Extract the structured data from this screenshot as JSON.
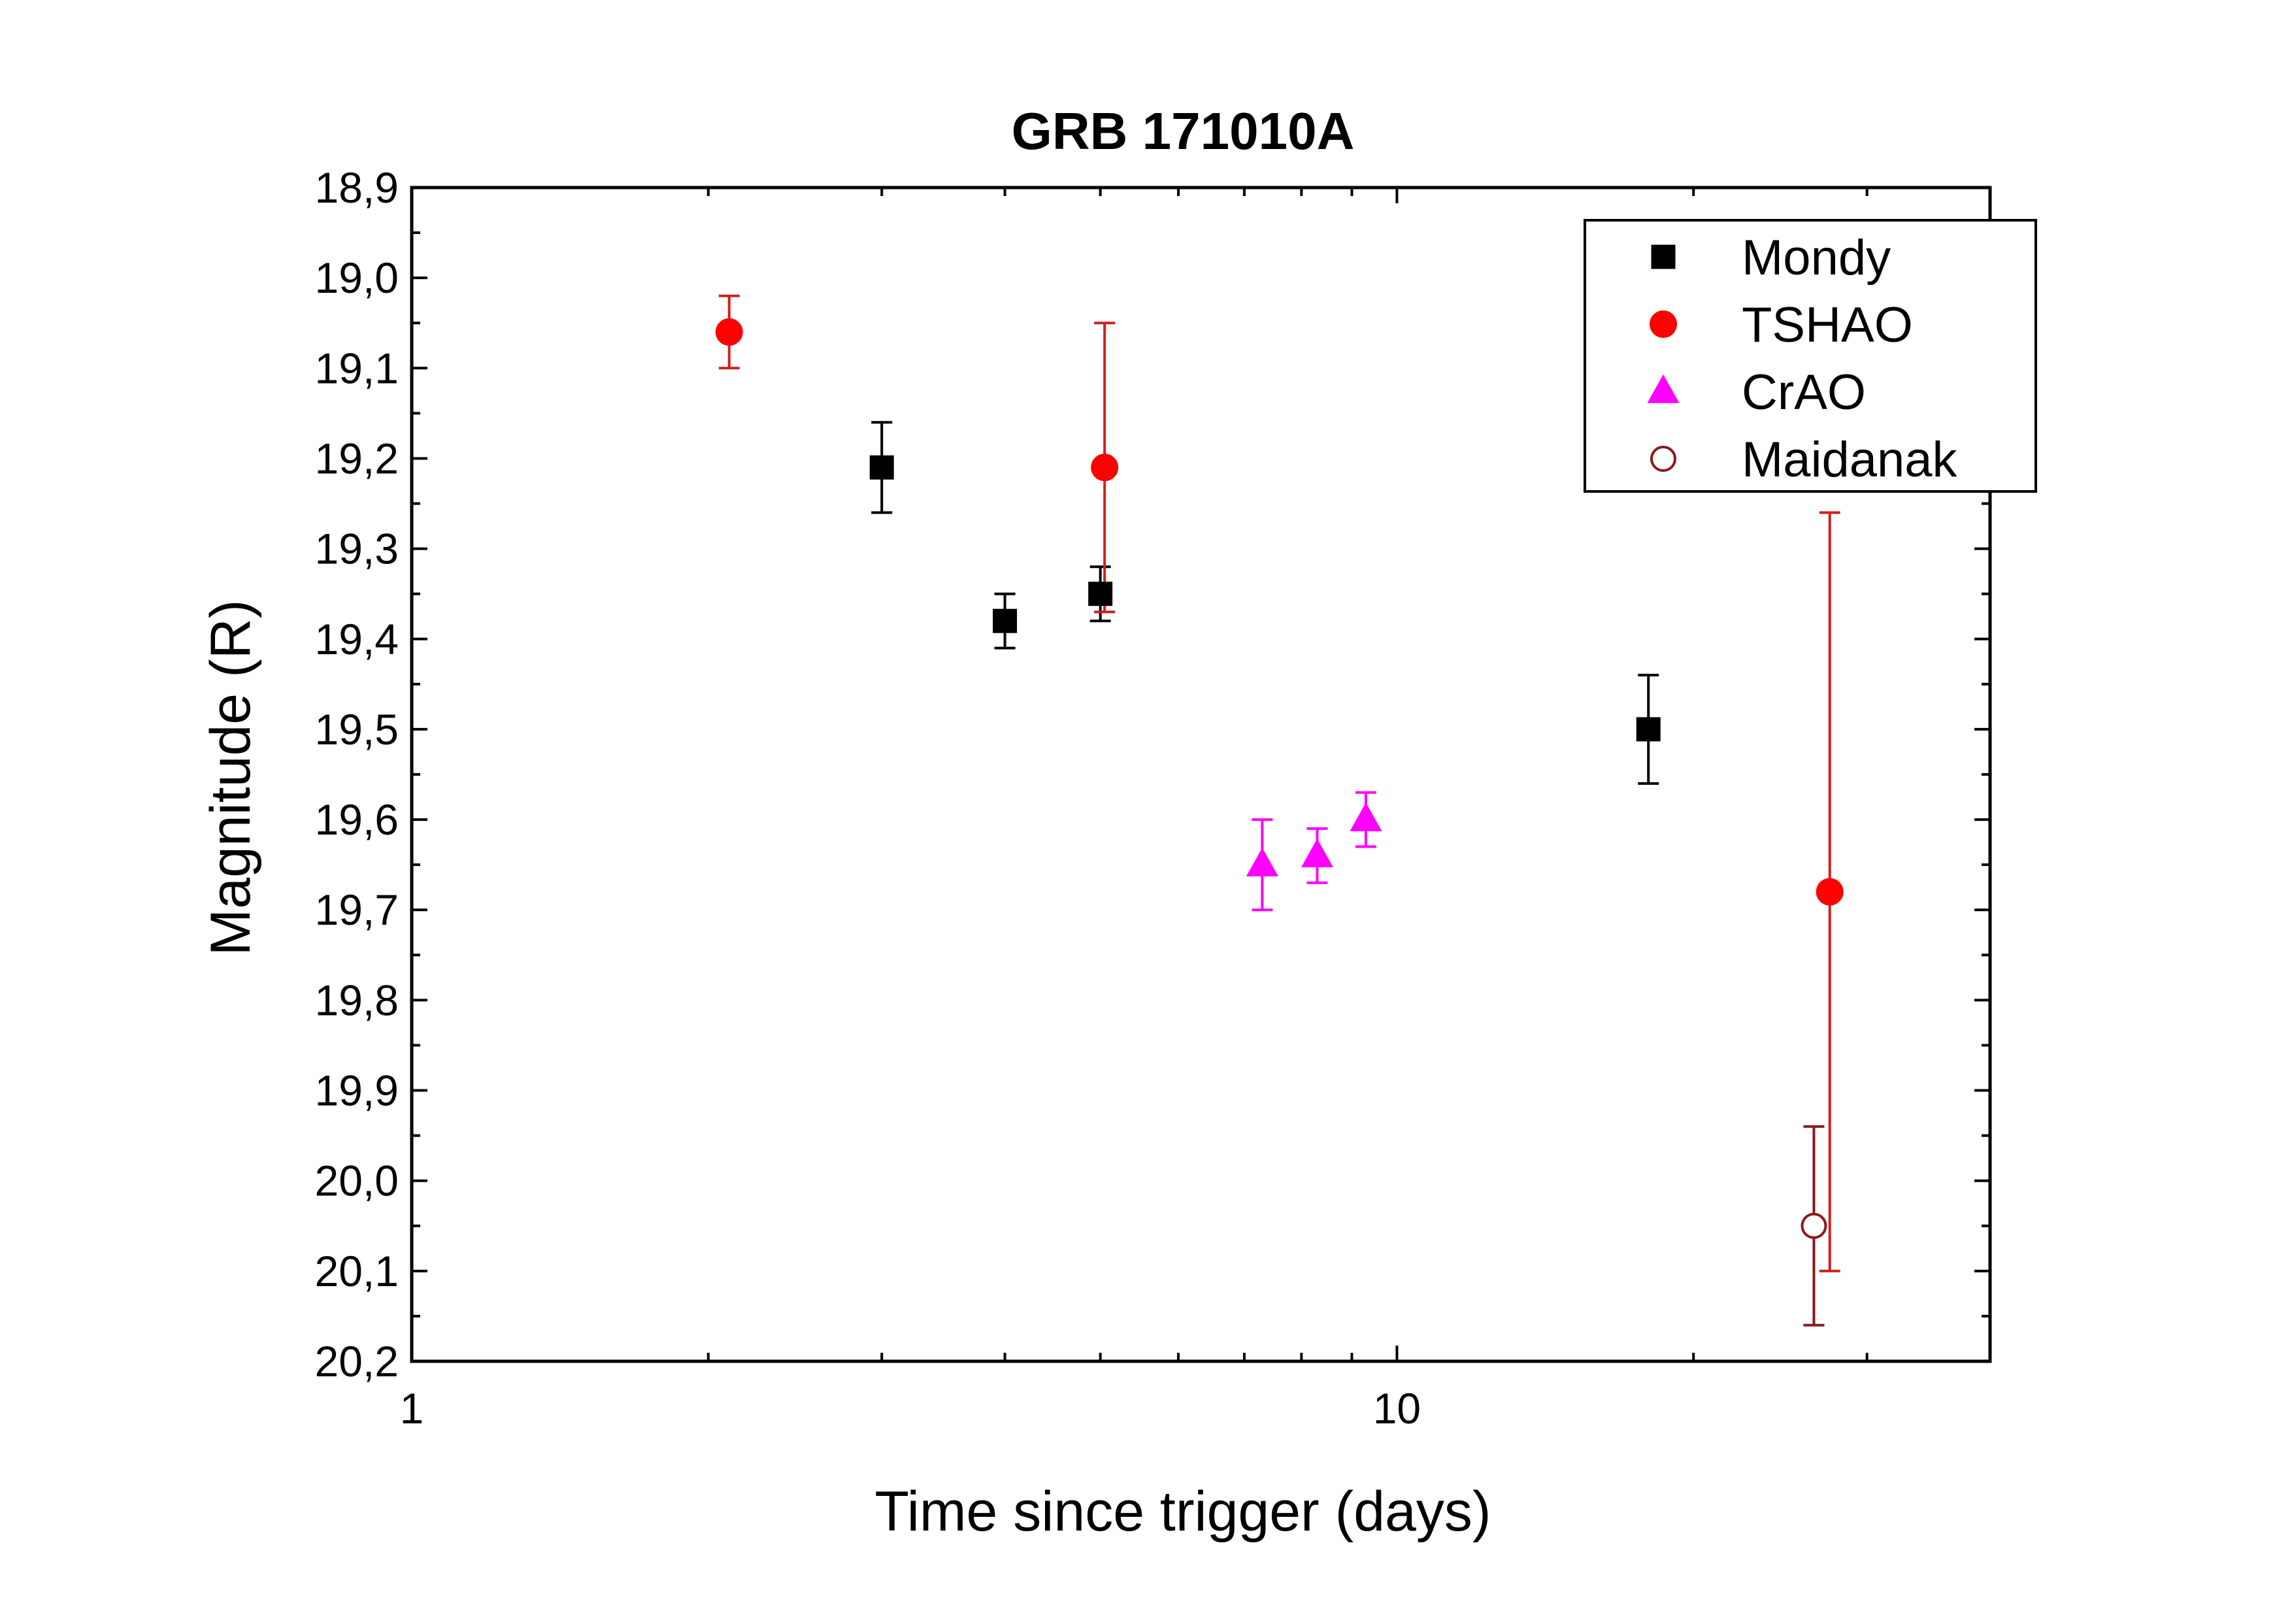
{
  "chart_data": {
    "type": "scatter",
    "title": "GRB 171010A",
    "xlabel": "Time since trigger (days)",
    "ylabel": "Magnitude (R)",
    "xscale": "log",
    "xlim": [
      1,
      40
    ],
    "ylim": [
      18.9,
      20.2
    ],
    "y_inverted": true,
    "grid": false,
    "legend_position": "top-right",
    "x_tick_labels": [
      {
        "value": 1,
        "label": "1"
      },
      {
        "value": 10,
        "label": "10"
      }
    ],
    "y_tick_labels": [
      {
        "value": 18.9,
        "label": "18,9"
      },
      {
        "value": 19.0,
        "label": "19,0"
      },
      {
        "value": 19.1,
        "label": "19,1"
      },
      {
        "value": 19.2,
        "label": "19,2"
      },
      {
        "value": 19.3,
        "label": "19,3"
      },
      {
        "value": 19.4,
        "label": "19,4"
      },
      {
        "value": 19.5,
        "label": "19,5"
      },
      {
        "value": 19.6,
        "label": "19,6"
      },
      {
        "value": 19.7,
        "label": "19,7"
      },
      {
        "value": 19.8,
        "label": "19,8"
      },
      {
        "value": 19.9,
        "label": "19,9"
      },
      {
        "value": 20.0,
        "label": "20,0"
      },
      {
        "value": 20.1,
        "label": "20,1"
      },
      {
        "value": 20.2,
        "label": "20,2"
      }
    ],
    "series": [
      {
        "name": "Mondy",
        "marker": "square",
        "filled": true,
        "color": "#000000",
        "points": [
          {
            "x": 3.0,
            "y": 19.21,
            "y_low": 19.16,
            "y_high": 19.26
          },
          {
            "x": 4.0,
            "y": 19.38,
            "y_low": 19.35,
            "y_high": 19.41
          },
          {
            "x": 5.0,
            "y": 19.35,
            "y_low": 19.32,
            "y_high": 19.38
          },
          {
            "x": 18.0,
            "y": 19.5,
            "y_low": 19.44,
            "y_high": 19.56
          }
        ]
      },
      {
        "name": "TSHAO",
        "marker": "circle",
        "filled": true,
        "color": "#ff0000",
        "errorbar_color": "#cc2222",
        "points": [
          {
            "x": 2.1,
            "y": 19.06,
            "y_low": 19.02,
            "y_high": 19.1
          },
          {
            "x": 5.05,
            "y": 19.21,
            "y_low": 19.05,
            "y_high": 19.37
          },
          {
            "x": 27.5,
            "y": 19.68,
            "y_low": 19.26,
            "y_high": 20.1
          }
        ]
      },
      {
        "name": "CrAO",
        "marker": "triangle",
        "filled": true,
        "color": "#ff00ff",
        "points": [
          {
            "x": 7.3,
            "y": 19.65,
            "y_low": 19.6,
            "y_high": 19.7
          },
          {
            "x": 8.3,
            "y": 19.64,
            "y_low": 19.61,
            "y_high": 19.67
          },
          {
            "x": 9.3,
            "y": 19.6,
            "y_low": 19.57,
            "y_high": 19.63
          }
        ]
      },
      {
        "name": "Maidanak",
        "marker": "circle",
        "filled": false,
        "color": "#8b1a1a",
        "points": [
          {
            "x": 26.5,
            "y": 20.05,
            "y_low": 19.94,
            "y_high": 20.16
          }
        ]
      }
    ]
  }
}
